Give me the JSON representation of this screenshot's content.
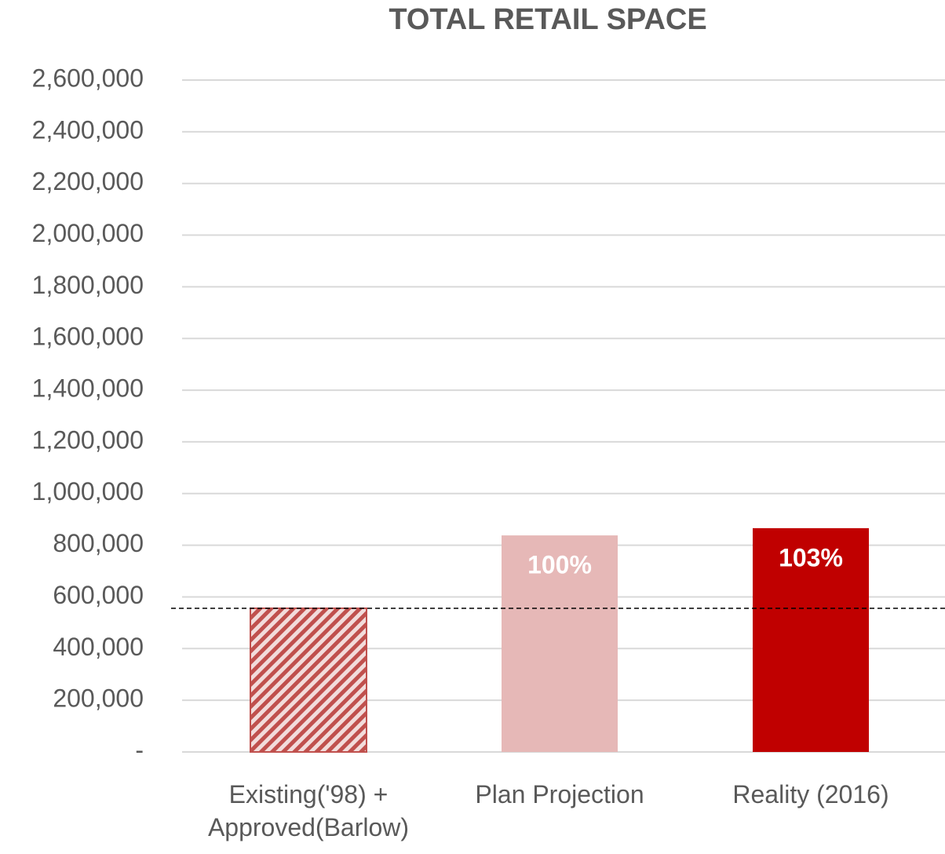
{
  "chart_data": {
    "type": "bar",
    "title": "TOTAL RETAIL SPACE",
    "categories": [
      "Existing('98) + Approved(Barlow)",
      "Plan Projection",
      "Reality (2016)"
    ],
    "values": [
      556000,
      838000,
      866000
    ],
    "colors": [
      "#c0504d",
      "#e6b8b7",
      "#c00000"
    ],
    "hatched": [
      true,
      false,
      false
    ],
    "bar_labels": [
      null,
      "100%",
      "103%"
    ],
    "ylim": [
      0,
      2600000
    ],
    "yticks": [
      {
        "value": 0,
        "label": "-"
      },
      {
        "value": 200000,
        "label": "200,000"
      },
      {
        "value": 400000,
        "label": "400,000"
      },
      {
        "value": 600000,
        "label": "600,000"
      },
      {
        "value": 800000,
        "label": "800,000"
      },
      {
        "value": 1000000,
        "label": "1,000,000"
      },
      {
        "value": 1200000,
        "label": "1,200,000"
      },
      {
        "value": 1400000,
        "label": "1,400,000"
      },
      {
        "value": 1600000,
        "label": "1,600,000"
      },
      {
        "value": 1800000,
        "label": "1,800,000"
      },
      {
        "value": 2000000,
        "label": "2,000,000"
      },
      {
        "value": 2200000,
        "label": "2,200,000"
      },
      {
        "value": 2400000,
        "label": "2,400,000"
      },
      {
        "value": 2600000,
        "label": "2,600,000"
      }
    ],
    "grid": true
  }
}
